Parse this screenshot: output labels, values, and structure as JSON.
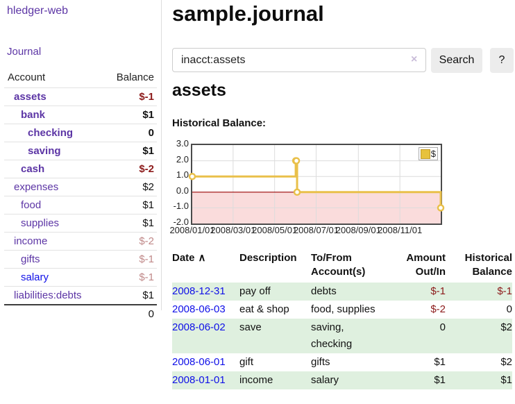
{
  "colors": {
    "link_purple": "#5c35a5",
    "link_blue": "#0f0feb",
    "negative_red": "#8c1a1a",
    "negative_soft": "#c08989",
    "row_green": "#dff0df",
    "button_gray": "#ececec"
  },
  "sidebar": {
    "brand": "hledger-web",
    "journal_link": "Journal",
    "accounts": {
      "col_account": "Account",
      "col_balance": "Balance",
      "rows": [
        {
          "name": "assets",
          "balance": "$-1"
        },
        {
          "name": "bank",
          "balance": "$1"
        },
        {
          "name": "checking",
          "balance": "0"
        },
        {
          "name": "saving",
          "balance": "$1"
        },
        {
          "name": "cash",
          "balance": "$-2"
        },
        {
          "name": "expenses",
          "balance": "$2"
        },
        {
          "name": "food",
          "balance": "$1"
        },
        {
          "name": "supplies",
          "balance": "$1"
        },
        {
          "name": "income",
          "balance": "$-2"
        },
        {
          "name": "gifts",
          "balance": "$-1"
        },
        {
          "name": "salary",
          "balance": "$-1"
        },
        {
          "name": "liabilities:debts",
          "balance": "$1"
        }
      ],
      "total": "0"
    }
  },
  "main": {
    "title": "sample.journal",
    "search": {
      "value": "inacct:assets",
      "clear_icon": "×",
      "search_button": "Search",
      "help_button": "?"
    },
    "heading": "assets",
    "chart_title": "Historical Balance:"
  },
  "chart_data": {
    "type": "line",
    "step": true,
    "title": "Historical Balance",
    "legend": "$",
    "legend_position": "top-right",
    "grid": true,
    "xlim": [
      "2008-01-01",
      "2008-12-31"
    ],
    "ylim": [
      -2,
      3
    ],
    "x_ticks": [
      "2008/01/01",
      "2008/03/01",
      "2008/05/01",
      "2008/07/01",
      "2008/09/01",
      "2008/11/01"
    ],
    "y_ticks": [
      "3.0",
      "2.0",
      "1.0",
      "0.0",
      "-1.0",
      "-2.0"
    ],
    "series": [
      {
        "name": "$",
        "points": [
          {
            "x": "2008-01-01",
            "y": 1
          },
          {
            "x": "2008-06-01",
            "y": 2
          },
          {
            "x": "2008-06-02",
            "y": 2
          },
          {
            "x": "2008-06-03",
            "y": 0
          },
          {
            "x": "2008-12-31",
            "y": -1
          }
        ]
      }
    ],
    "colors": {
      "line": "#e9c04a",
      "marker_fill": "#ffffff",
      "negative_region": "#fadcdc",
      "zero_line": "#990000",
      "grid": "#dcdcdc",
      "border": "#4a4a4a"
    }
  },
  "register": {
    "headers": {
      "date": "Date",
      "date_sort": "∧",
      "description": "Description",
      "tofrom_line1": "To/From",
      "tofrom_line2": "Account(s)",
      "amount_line1": "Amount",
      "amount_line2": "Out/In",
      "balance_line1": "Historical",
      "balance_line2": "Balance"
    },
    "rows": [
      {
        "date": "2008-12-31",
        "description": "pay off",
        "tofrom": "debts",
        "amount": "$-1",
        "balance": "$-1"
      },
      {
        "date": "2008-06-03",
        "description": "eat & shop",
        "tofrom": "food, supplies",
        "amount": "$-2",
        "balance": "0"
      },
      {
        "date": "2008-06-02",
        "description": "save",
        "tofrom": "saving, checking",
        "amount": "0",
        "balance": "$2"
      },
      {
        "date": "2008-06-01",
        "description": "gift",
        "tofrom": "gifts",
        "amount": "$1",
        "balance": "$2"
      },
      {
        "date": "2008-01-01",
        "description": "income",
        "tofrom": "salary",
        "amount": "$1",
        "balance": "$1"
      }
    ]
  }
}
